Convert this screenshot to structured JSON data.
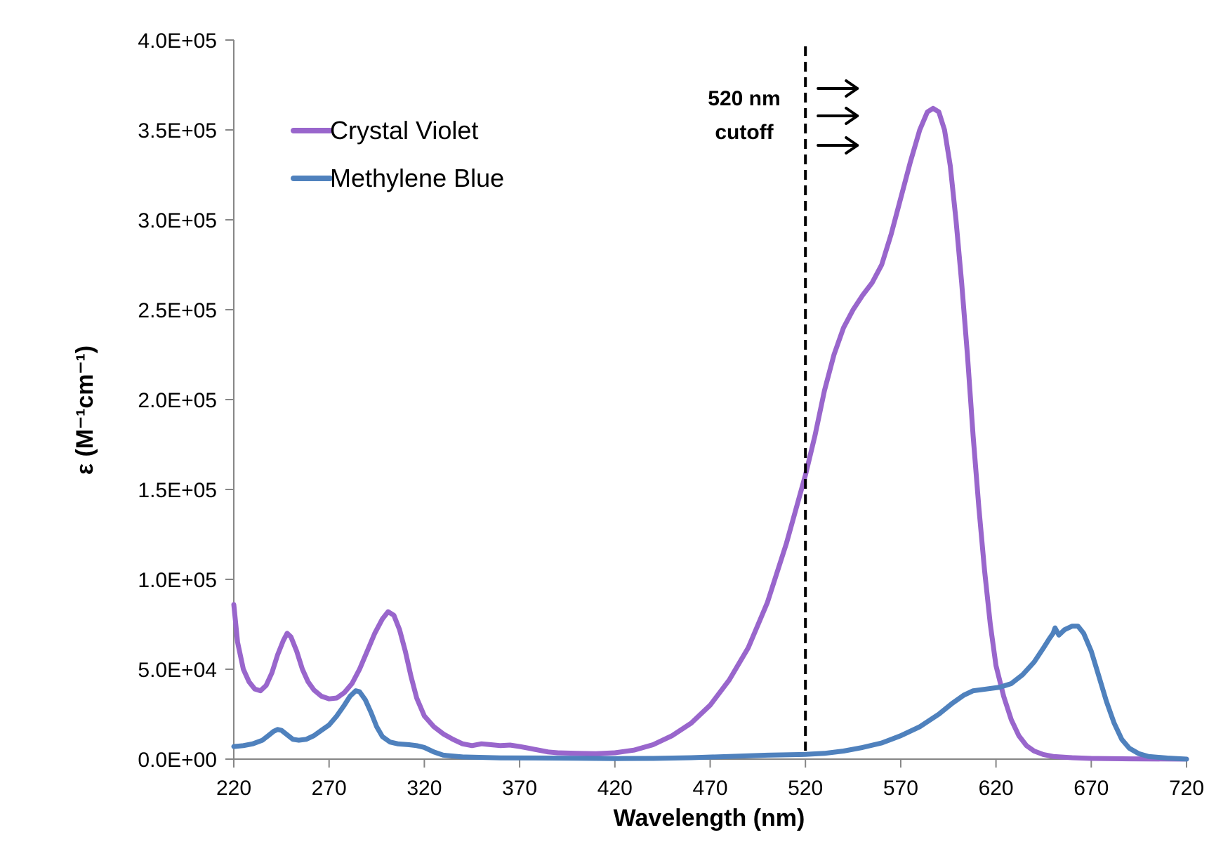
{
  "chart_data": {
    "type": "line",
    "xlabel": "Wavelength (nm)",
    "ylabel": "ε (M⁻¹cm⁻¹)",
    "xlim": [
      220,
      720
    ],
    "ylim": [
      0,
      400000
    ],
    "x_ticks": [
      "220",
      "270",
      "320",
      "370",
      "420",
      "470",
      "520",
      "570",
      "620",
      "670",
      "720"
    ],
    "y_ticks": [
      "0.0E+00",
      "5.0E+04",
      "1.0E+05",
      "1.5E+05",
      "2.0E+05",
      "2.5E+05",
      "3.0E+05",
      "3.5E+05",
      "4.0E+05"
    ],
    "grid": false,
    "legend_position": "top-left",
    "series": [
      {
        "name": "Crystal Violet",
        "color": "#9966cc",
        "points": [
          [
            220,
            86000
          ],
          [
            222,
            65000
          ],
          [
            225,
            50000
          ],
          [
            228,
            43000
          ],
          [
            231,
            39000
          ],
          [
            234,
            38000
          ],
          [
            237,
            41000
          ],
          [
            240,
            48000
          ],
          [
            243,
            58000
          ],
          [
            246,
            66000
          ],
          [
            248,
            70000
          ],
          [
            250,
            68000
          ],
          [
            253,
            60000
          ],
          [
            256,
            50000
          ],
          [
            259,
            43000
          ],
          [
            262,
            38500
          ],
          [
            266,
            35000
          ],
          [
            270,
            33500
          ],
          [
            274,
            34000
          ],
          [
            278,
            37000
          ],
          [
            282,
            42000
          ],
          [
            286,
            50000
          ],
          [
            290,
            60000
          ],
          [
            294,
            70000
          ],
          [
            298,
            78000
          ],
          [
            301,
            82000
          ],
          [
            304,
            80000
          ],
          [
            307,
            72000
          ],
          [
            310,
            60000
          ],
          [
            313,
            46000
          ],
          [
            316,
            34000
          ],
          [
            320,
            24000
          ],
          [
            325,
            18000
          ],
          [
            330,
            14000
          ],
          [
            335,
            11000
          ],
          [
            340,
            8500
          ],
          [
            345,
            7500
          ],
          [
            350,
            8500
          ],
          [
            355,
            8000
          ],
          [
            360,
            7500
          ],
          [
            365,
            7800
          ],
          [
            370,
            7000
          ],
          [
            375,
            6000
          ],
          [
            380,
            5000
          ],
          [
            385,
            4000
          ],
          [
            390,
            3500
          ],
          [
            400,
            3200
          ],
          [
            410,
            3000
          ],
          [
            420,
            3500
          ],
          [
            430,
            5000
          ],
          [
            440,
            8000
          ],
          [
            450,
            13000
          ],
          [
            460,
            20000
          ],
          [
            470,
            30000
          ],
          [
            480,
            44000
          ],
          [
            490,
            62000
          ],
          [
            500,
            87000
          ],
          [
            510,
            120000
          ],
          [
            520,
            158000
          ],
          [
            525,
            180000
          ],
          [
            530,
            205000
          ],
          [
            535,
            225000
          ],
          [
            540,
            240000
          ],
          [
            545,
            250000
          ],
          [
            550,
            258000
          ],
          [
            555,
            265000
          ],
          [
            560,
            275000
          ],
          [
            565,
            292000
          ],
          [
            570,
            312000
          ],
          [
            575,
            332000
          ],
          [
            580,
            350000
          ],
          [
            584,
            360000
          ],
          [
            587,
            362000
          ],
          [
            590,
            360000
          ],
          [
            593,
            350000
          ],
          [
            596,
            330000
          ],
          [
            599,
            300000
          ],
          [
            602,
            265000
          ],
          [
            605,
            225000
          ],
          [
            608,
            180000
          ],
          [
            611,
            140000
          ],
          [
            614,
            105000
          ],
          [
            617,
            75000
          ],
          [
            620,
            52000
          ],
          [
            624,
            35000
          ],
          [
            628,
            22000
          ],
          [
            632,
            13000
          ],
          [
            636,
            7500
          ],
          [
            640,
            4500
          ],
          [
            645,
            2500
          ],
          [
            650,
            1500
          ],
          [
            660,
            800
          ],
          [
            670,
            400
          ],
          [
            690,
            150
          ],
          [
            720,
            0
          ]
        ]
      },
      {
        "name": "Methylene Blue",
        "color": "#4f81bd",
        "points": [
          [
            220,
            7000
          ],
          [
            225,
            7500
          ],
          [
            230,
            8500
          ],
          [
            235,
            10500
          ],
          [
            238,
            13000
          ],
          [
            241,
            15500
          ],
          [
            243,
            16500
          ],
          [
            245,
            16000
          ],
          [
            248,
            13500
          ],
          [
            251,
            11000
          ],
          [
            254,
            10500
          ],
          [
            258,
            11000
          ],
          [
            262,
            13000
          ],
          [
            266,
            16000
          ],
          [
            270,
            19000
          ],
          [
            274,
            24000
          ],
          [
            278,
            30000
          ],
          [
            281,
            35000
          ],
          [
            284,
            38000
          ],
          [
            286,
            37500
          ],
          [
            289,
            33000
          ],
          [
            292,
            26000
          ],
          [
            295,
            18000
          ],
          [
            298,
            12500
          ],
          [
            302,
            9500
          ],
          [
            306,
            8500
          ],
          [
            312,
            8000
          ],
          [
            316,
            7500
          ],
          [
            320,
            6500
          ],
          [
            325,
            4000
          ],
          [
            330,
            2200
          ],
          [
            340,
            1200
          ],
          [
            360,
            700
          ],
          [
            400,
            500
          ],
          [
            420,
            300
          ],
          [
            440,
            400
          ],
          [
            460,
            800
          ],
          [
            480,
            1500
          ],
          [
            500,
            2200
          ],
          [
            520,
            2600
          ],
          [
            530,
            3200
          ],
          [
            540,
            4500
          ],
          [
            550,
            6500
          ],
          [
            560,
            9000
          ],
          [
            570,
            13000
          ],
          [
            580,
            18000
          ],
          [
            590,
            25000
          ],
          [
            597,
            31000
          ],
          [
            603,
            35500
          ],
          [
            608,
            38000
          ],
          [
            615,
            39000
          ],
          [
            622,
            40000
          ],
          [
            628,
            42000
          ],
          [
            634,
            47000
          ],
          [
            640,
            54000
          ],
          [
            645,
            62000
          ],
          [
            648,
            67000
          ],
          [
            650,
            70000
          ],
          [
            651,
            73000
          ],
          [
            653,
            69000
          ],
          [
            656,
            72000
          ],
          [
            660,
            74000
          ],
          [
            663,
            74000
          ],
          [
            666,
            70000
          ],
          [
            670,
            60000
          ],
          [
            674,
            46000
          ],
          [
            678,
            32000
          ],
          [
            682,
            20000
          ],
          [
            686,
            11000
          ],
          [
            690,
            6000
          ],
          [
            695,
            3000
          ],
          [
            700,
            1500
          ],
          [
            710,
            600
          ],
          [
            720,
            0
          ]
        ]
      }
    ],
    "cutoff": {
      "x": 520,
      "label_line1": "520 nm",
      "label_line2": "cutoff"
    }
  }
}
